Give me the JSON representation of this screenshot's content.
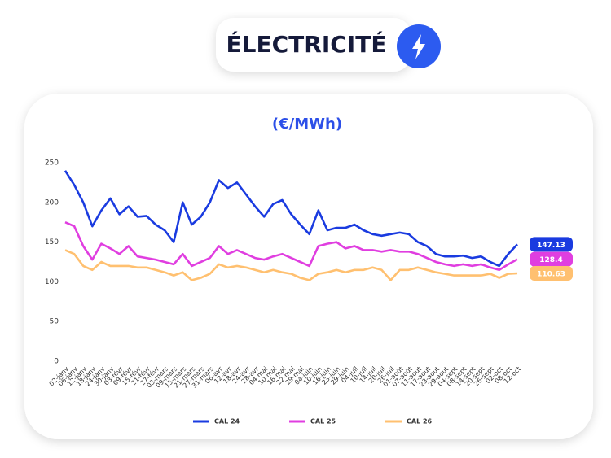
{
  "header": {
    "title": "ÉLECTRICITÉ"
  },
  "chart_data": {
    "type": "line",
    "title": "(€/MWh)",
    "categories": [
      "02-janv",
      "06-janv",
      "12-janv",
      "18-janv",
      "24-janv",
      "30-janv",
      "03-févr",
      "09-févr",
      "15-févr",
      "21-févr",
      "27-févr",
      "03-mars",
      "09-mars",
      "15-mars",
      "21-mars",
      "27-mars",
      "31-mars",
      "06-avr",
      "12-avr",
      "18-avr",
      "24-avr",
      "28-avr",
      "04-mai",
      "10-mai",
      "16-mai",
      "22-mai",
      "29-mai",
      "04-juin",
      "10-juin",
      "16-juin",
      "23-juin",
      "29-juin",
      "04-juil",
      "10-juil",
      "14-juil",
      "20-juil",
      "26-juil",
      "01-août",
      "07-août",
      "11-août",
      "17-août",
      "23-août",
      "29-août",
      "04-sept",
      "08-sept",
      "14-sept",
      "20-sept",
      "26-sept",
      "02-oct",
      "08-oct",
      "12-oct"
    ],
    "series": [
      {
        "name": "CAL 24",
        "color": "#1a3be0",
        "values": [
          240,
          222,
          200,
          170,
          190,
          205,
          185,
          195,
          182,
          183,
          172,
          165,
          150,
          200,
          172,
          182,
          200,
          228,
          218,
          225,
          210,
          195,
          182,
          198,
          203,
          185,
          172,
          160,
          190,
          165,
          168,
          168,
          172,
          165,
          160,
          158,
          160,
          162,
          160,
          150,
          145,
          135,
          132,
          132,
          133,
          130,
          132,
          125,
          120,
          135,
          147.13
        ]
      },
      {
        "name": "CAL 25",
        "color": "#e03ee0",
        "values": [
          175,
          170,
          145,
          128,
          148,
          142,
          135,
          145,
          132,
          130,
          128,
          125,
          122,
          135,
          120,
          125,
          130,
          145,
          135,
          140,
          135,
          130,
          128,
          132,
          135,
          130,
          125,
          120,
          145,
          148,
          150,
          142,
          145,
          140,
          140,
          138,
          140,
          138,
          138,
          135,
          130,
          125,
          122,
          120,
          122,
          120,
          122,
          118,
          115,
          122,
          128.4
        ]
      },
      {
        "name": "CAL 26",
        "color": "#ffc070",
        "values": [
          140,
          135,
          120,
          115,
          125,
          120,
          120,
          120,
          118,
          118,
          115,
          112,
          108,
          112,
          102,
          105,
          110,
          122,
          118,
          120,
          118,
          115,
          112,
          115,
          112,
          110,
          105,
          102,
          110,
          112,
          115,
          112,
          115,
          115,
          118,
          115,
          102,
          115,
          115,
          118,
          115,
          112,
          110,
          108,
          108,
          108,
          108,
          110,
          105,
          110,
          110.63
        ]
      }
    ],
    "ylim": [
      0,
      250
    ],
    "yticks": [
      0,
      50,
      100,
      150,
      200,
      250
    ],
    "grid": false
  }
}
